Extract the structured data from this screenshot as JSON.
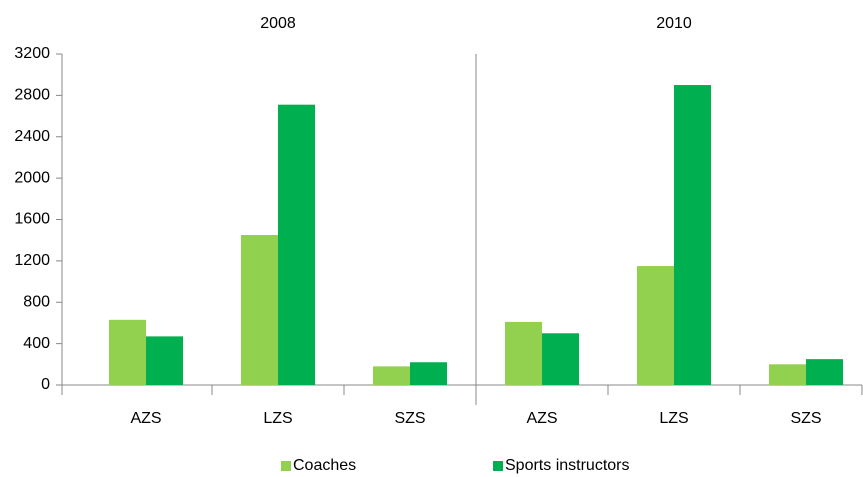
{
  "chart_data": {
    "type": "bar",
    "groups": [
      "2008",
      "2010"
    ],
    "categories": [
      "AZS",
      "LZS",
      "SZS",
      "AZS",
      "LZS",
      "SZS"
    ],
    "series": [
      {
        "name": "Coaches",
        "color": "#92d050",
        "values": [
          630,
          1450,
          180,
          610,
          1150,
          200
        ]
      },
      {
        "name": "Sports instructors",
        "color": "#00b050",
        "values": [
          470,
          2710,
          220,
          500,
          2900,
          250
        ]
      }
    ],
    "ylim": [
      0,
      3200
    ],
    "yticks": [
      0,
      400,
      800,
      1200,
      1600,
      2000,
      2400,
      2800,
      3200
    ],
    "legend": "bottom"
  }
}
